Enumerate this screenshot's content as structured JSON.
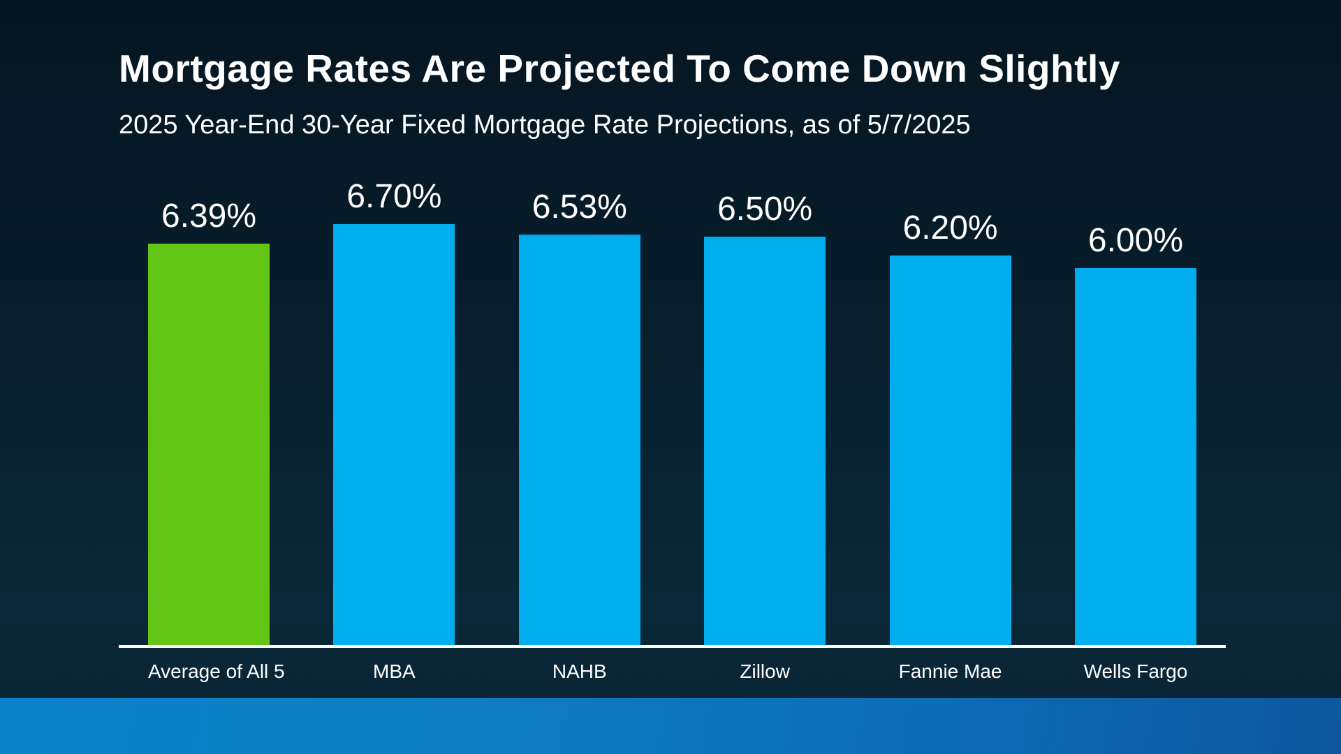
{
  "page": {
    "title": "Mortgage Rates Are Projected To Come Down Slightly",
    "subtitle": "2025 Year-End 30-Year Fixed Mortgage Rate Projections, as of 5/7/2025"
  },
  "colors": {
    "background_top": "#051622",
    "background_bottom": "#0a2434",
    "highlight_bar_green": "#63c617",
    "bar_blue": "#00aeef",
    "axis_line": "#ffffff",
    "text": "#ffffff",
    "bottom_strip_left": "#0a82ca",
    "bottom_strip_right": "#0e579e"
  },
  "chart_data": {
    "type": "bar",
    "title": "Mortgage Rates Are Projected To Come Down Slightly",
    "subtitle": "2025 Year-End 30-Year Fixed Mortgage Rate Projections, as of 5/7/2025",
    "categories": [
      "Average of All 5",
      "MBA",
      "NAHB",
      "Zillow",
      "Fannie Mae",
      "Wells Fargo"
    ],
    "values": [
      6.39,
      6.7,
      6.53,
      6.5,
      6.2,
      6.0
    ],
    "value_labels": [
      "6.39%",
      "6.70%",
      "6.53%",
      "6.50%",
      "6.20%",
      "6.00%"
    ],
    "bar_colors": [
      "#63c617",
      "#00aeef",
      "#00aeef",
      "#00aeef",
      "#00aeef",
      "#00aeef"
    ],
    "xlabel": "",
    "ylabel": "30-Year Fixed Mortgage Rate Projection",
    "ylim": [
      0,
      7
    ],
    "grid": false,
    "legend": "none",
    "data_labels_position": "above bars",
    "baseline_axis": "white horizontal line at y=0"
  }
}
